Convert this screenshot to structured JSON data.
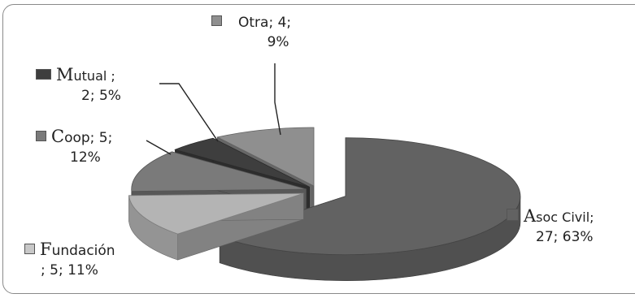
{
  "chart_data": {
    "type": "pie",
    "style": "3d-exploded",
    "slices": [
      {
        "name": "Asoc Civil",
        "value": 27,
        "percent": 63,
        "color": "#626262"
      },
      {
        "name": "Fundación",
        "value": 5,
        "percent": 11,
        "color": "#b4b4b4"
      },
      {
        "name": "Coop",
        "value": 5,
        "percent": 12,
        "color": "#7a7a7a"
      },
      {
        "name": "Mutual",
        "value": 2,
        "percent": 5,
        "color": "#3e3e3e"
      },
      {
        "name": "Otra",
        "value": 4,
        "percent": 9,
        "color": "#8f8f8f"
      }
    ],
    "labels": {
      "otra": {
        "line1": "Otra; 4;",
        "line2": "9%"
      },
      "mutual": {
        "head": "M",
        "rest": "utual ;",
        "line2": "2; 5%"
      },
      "coop": {
        "head": "C",
        "rest": "oop; 5;",
        "line2": "12%"
      },
      "fundacion": {
        "head": "F",
        "rest": "undación",
        "line2": "; 5; 11%"
      },
      "asoc": {
        "head": "A",
        "rest": "soc Civil;",
        "line2": "27; 63%"
      }
    }
  }
}
